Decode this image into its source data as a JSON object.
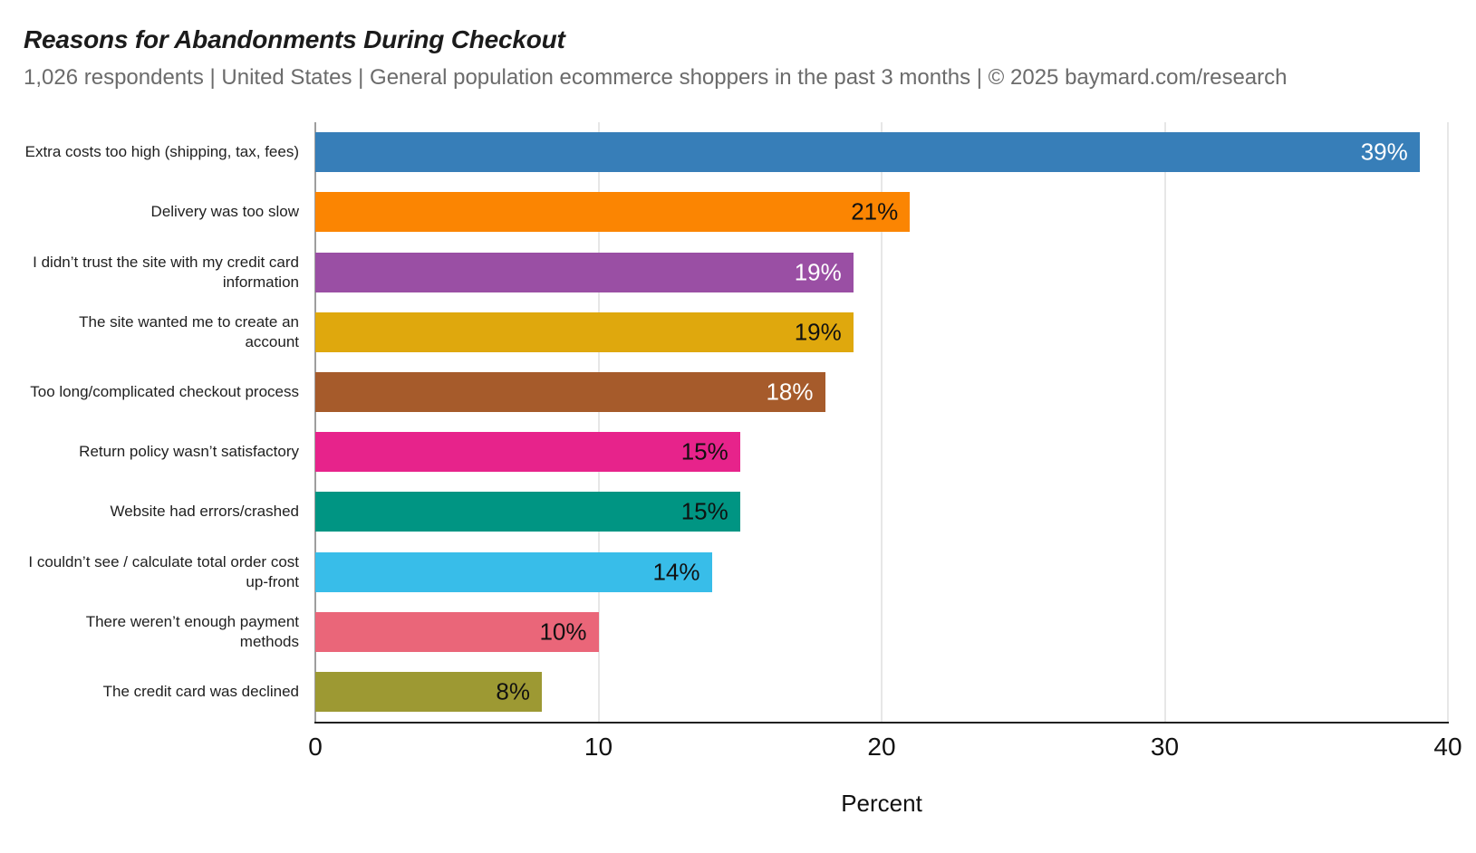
{
  "header": {
    "title": "Reasons for Abandonments During Checkout",
    "subtitle": "1,026 respondents  |  United States  |  General population ecommerce shoppers in the past 3 months | © 2025 baymard.com/research"
  },
  "chart_data": {
    "type": "bar",
    "orientation": "horizontal",
    "title": "Reasons for Abandonments During Checkout",
    "subtitle": "1,026 respondents  |  United States  |  General population ecommerce shoppers in the past 3 months | © 2025 baymard.com/research",
    "xlabel": "Percent",
    "xlim": [
      0,
      40
    ],
    "xticks": [
      "0",
      "10",
      "20",
      "30",
      "40"
    ],
    "grid": true,
    "legend": "none",
    "categories": [
      "Extra costs too high (shipping, tax, fees)",
      "Delivery was too slow",
      "I didn’t trust the site with my credit card information",
      "The site wanted me to create an account",
      "Too long/complicated checkout process",
      "Return policy wasn’t satisfactory",
      "Website had errors/crashed",
      "I couldn’t see / calculate total order cost up-front",
      "There weren’t enough payment methods",
      "The credit card was declined"
    ],
    "values": [
      39,
      21,
      19,
      19,
      18,
      15,
      15,
      14,
      10,
      8
    ],
    "value_labels": [
      "39%",
      "21%",
      "19%",
      "19%",
      "18%",
      "15%",
      "15%",
      "14%",
      "10%",
      "8%"
    ],
    "bar_colors": [
      "#377eb8",
      "#fb8502",
      "#9a4fa4",
      "#dfa80d",
      "#a65b2b",
      "#e7238b",
      "#009583",
      "#38bde9",
      "#ea6679",
      "#9d9933"
    ],
    "value_label_colors": [
      "#ffffff",
      "#111111",
      "#ffffff",
      "#111111",
      "#ffffff",
      "#111111",
      "#111111",
      "#111111",
      "#111111",
      "#111111"
    ],
    "style": {
      "gridline_color": "#e7e7e7",
      "y_axis_color": "#9e9e9e",
      "x_axis_color": "#212121"
    }
  }
}
